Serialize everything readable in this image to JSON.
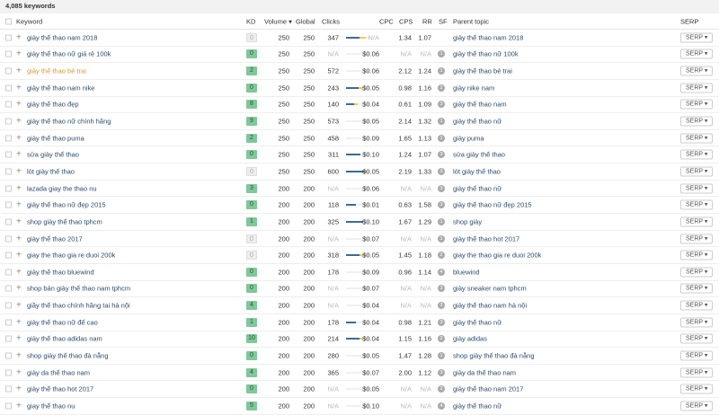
{
  "summary": "4,085 keywords",
  "headers": {
    "keyword": "Keyword",
    "kd": "KD",
    "volume": "Volume ▾",
    "global": "Global",
    "clicks": "Clicks",
    "cpc": "CPC",
    "cps": "CPS",
    "rr": "RR",
    "sf": "SF",
    "parent": "Parent topic",
    "serp": "SERP"
  },
  "colors": {
    "kd_green": "#7fc899",
    "link": "#2a4b6b",
    "highlight": "#d9982e",
    "bar_organic": "#3d6a94",
    "bar_paid": "#f2c94c"
  },
  "serp_label": "SERP ▾",
  "rows": [
    {
      "kw": "giày thể thao nam 2018",
      "kd": "0",
      "kdg": false,
      "vol": "250",
      "glob": "250",
      "clicks": "347",
      "bar": [
        0.55,
        0.25
      ],
      "cpc": "N/A",
      "cps": "1.34",
      "rr": "1.07",
      "sf": "",
      "parent": "giày thể thao nam 2018"
    },
    {
      "kw": "giày thể thao nữ giá rẻ 100k",
      "kd": "0",
      "kdg": true,
      "vol": "250",
      "glob": "250",
      "clicks": "N/A",
      "bar": [
        0,
        0
      ],
      "cpc": "$0.06",
      "cps": "N/A",
      "rr": "N/A",
      "sf": "1",
      "parent": "giày thể thao nữ 100k"
    },
    {
      "kw": "giày thể thao bé trai",
      "kd": "2",
      "kdg": true,
      "vol": "250",
      "glob": "250",
      "clicks": "572",
      "bar": [
        0,
        0
      ],
      "cpc": "$0.06",
      "cps": "2.12",
      "rr": "1.24",
      "sf": "1",
      "parent": "giày thể thao bé trai",
      "hl": true
    },
    {
      "kw": "giày thể thao nam nike",
      "kd": "0",
      "kdg": true,
      "vol": "250",
      "glob": "250",
      "clicks": "243",
      "bar": [
        0.5,
        0.2
      ],
      "cpc": "$0.05",
      "cps": "0.98",
      "rr": "1.16",
      "sf": "2",
      "parent": "giày nike nam"
    },
    {
      "kw": "giày thể thao đẹp",
      "kd": "8",
      "kdg": true,
      "vol": "250",
      "glob": "250",
      "clicks": "140",
      "bar": [
        0.35,
        0.15
      ],
      "cpc": "$0.04",
      "cps": "0.61",
      "rr": "1.09",
      "sf": "3",
      "parent": "giày thể thao nam"
    },
    {
      "kw": "giày thể thao nữ chính hãng",
      "kd": "9",
      "kdg": true,
      "vol": "250",
      "glob": "250",
      "clicks": "573",
      "bar": [
        0,
        0
      ],
      "cpc": "$0.05",
      "cps": "2.14",
      "rr": "1.32",
      "sf": "1",
      "parent": "giày thể thao nữ"
    },
    {
      "kw": "giày thể thao puma",
      "kd": "2",
      "kdg": true,
      "vol": "250",
      "glob": "250",
      "clicks": "458",
      "bar": [
        0,
        0
      ],
      "cpc": "$0.09",
      "cps": "1.65",
      "rr": "1.13",
      "sf": "1",
      "parent": "giày puma"
    },
    {
      "kw": "sửa giày thể thao",
      "kd": "0",
      "kdg": true,
      "vol": "250",
      "glob": "250",
      "clicks": "311",
      "bar": [
        0.6,
        0
      ],
      "cpc": "$0.10",
      "cps": "1.24",
      "rr": "1.07",
      "sf": "3",
      "parent": "sửa giày thể thao"
    },
    {
      "kw": "lót giày thể thao",
      "kd": "0",
      "kdg": false,
      "vol": "250",
      "glob": "250",
      "clicks": "600",
      "bar": [
        0.75,
        0.1
      ],
      "cpc": "$0.05",
      "cps": "2.19",
      "rr": "1.33",
      "sf": "3",
      "parent": "lót giày thể thao"
    },
    {
      "kw": "lazada giay the thao nu",
      "kd": "3",
      "kdg": true,
      "vol": "200",
      "glob": "200",
      "clicks": "N/A",
      "bar": [
        0,
        0
      ],
      "cpc": "$0.06",
      "cps": "N/A",
      "rr": "N/A",
      "sf": "3",
      "parent": "giày thể thao nữ"
    },
    {
      "kw": "giày thể thao nữ đẹp 2015",
      "kd": "0",
      "kdg": true,
      "vol": "200",
      "glob": "200",
      "clicks": "118",
      "bar": [
        0.4,
        0
      ],
      "cpc": "$0.01",
      "cps": "0.63",
      "rr": "1.58",
      "sf": "3",
      "parent": "giày thể thao nữ đẹp 2015"
    },
    {
      "kw": "shop giày thể thao tphcm",
      "kd": "1",
      "kdg": true,
      "vol": "200",
      "glob": "200",
      "clicks": "325",
      "bar": [
        0.7,
        0
      ],
      "cpc": "$0.10",
      "cps": "1.67",
      "rr": "1.29",
      "sf": "1",
      "parent": "shop giày"
    },
    {
      "kw": "giày thể thao 2017",
      "kd": "0",
      "kdg": false,
      "vol": "200",
      "glob": "200",
      "clicks": "N/A",
      "bar": [
        0,
        0
      ],
      "cpc": "$0.07",
      "cps": "N/A",
      "rr": "N/A",
      "sf": "1",
      "parent": "giày thể thao hot 2017"
    },
    {
      "kw": "giay the thao gia re duoi 200k",
      "kd": "0",
      "kdg": false,
      "vol": "200",
      "glob": "200",
      "clicks": "318",
      "bar": [
        0.55,
        0.2
      ],
      "cpc": "$0.05",
      "cps": "1.45",
      "rr": "1.18",
      "sf": "2",
      "parent": "giay the thao gia re duoi 200k"
    },
    {
      "kw": "giày thể thao bluewind",
      "kd": "0",
      "kdg": true,
      "vol": "200",
      "glob": "200",
      "clicks": "178",
      "bar": [
        0,
        0
      ],
      "cpc": "$0.09",
      "cps": "0.96",
      "rr": "1.14",
      "sf": "4",
      "parent": "bluewind"
    },
    {
      "kw": "shop bán giày thể thao nam tphcm",
      "kd": "0",
      "kdg": true,
      "vol": "200",
      "glob": "200",
      "clicks": "N/A",
      "bar": [
        0,
        0
      ],
      "cpc": "$0.07",
      "cps": "N/A",
      "rr": "N/A",
      "sf": "3",
      "parent": "giày sneaker nam tphcm"
    },
    {
      "kw": "giầy thể thao chính hãng tai hà nội",
      "kd": "4",
      "kdg": true,
      "vol": "200",
      "glob": "200",
      "clicks": "N/A",
      "bar": [
        0,
        0
      ],
      "cpc": "$0.04",
      "cps": "N/A",
      "rr": "N/A",
      "sf": "3",
      "parent": "giày thể thao nam hà nội"
    },
    {
      "kw": "giày thể thao nữ đế cao",
      "kd": "1",
      "kdg": true,
      "vol": "200",
      "glob": "200",
      "clicks": "178",
      "bar": [
        0.4,
        0
      ],
      "cpc": "$0.04",
      "cps": "0.98",
      "rr": "1.21",
      "sf": "3",
      "parent": "giày thể thao nữ"
    },
    {
      "kw": "giày thể thao adidas nam",
      "kd": "10",
      "kdg": true,
      "vol": "200",
      "glob": "200",
      "clicks": "214",
      "bar": [
        0.55,
        0.15
      ],
      "cpc": "$0.04",
      "cps": "1.15",
      "rr": "1.16",
      "sf": "2",
      "parent": "giày adidas"
    },
    {
      "kw": "shop giày thể thao đà nẵng",
      "kd": "0",
      "kdg": true,
      "vol": "200",
      "glob": "200",
      "clicks": "280",
      "bar": [
        0,
        0
      ],
      "cpc": "$0.05",
      "cps": "1.47",
      "rr": "1.28",
      "sf": "1",
      "parent": "shop giày thể thao đà nẵng"
    },
    {
      "kw": "giày da thể thao nam",
      "kd": "4",
      "kdg": true,
      "vol": "200",
      "glob": "200",
      "clicks": "365",
      "bar": [
        0,
        0
      ],
      "cpc": "$0.07",
      "cps": "2.00",
      "rr": "1.12",
      "sf": "3",
      "parent": "giày da thể thao nam"
    },
    {
      "kw": "giày thể thao hot 2017",
      "kd": "0",
      "kdg": true,
      "vol": "200",
      "glob": "200",
      "clicks": "N/A",
      "bar": [
        0,
        0
      ],
      "cpc": "$0.05",
      "cps": "N/A",
      "rr": "N/A",
      "sf": "2",
      "parent": "giày thể thao nam 2017"
    },
    {
      "kw": "giay thể thao nu",
      "kd": "5",
      "kdg": true,
      "vol": "200",
      "glob": "200",
      "clicks": "N/A",
      "bar": [
        0,
        0
      ],
      "cpc": "$0.10",
      "cps": "N/A",
      "rr": "N/A",
      "sf": "4",
      "parent": "giày thể thao nữ"
    }
  ]
}
